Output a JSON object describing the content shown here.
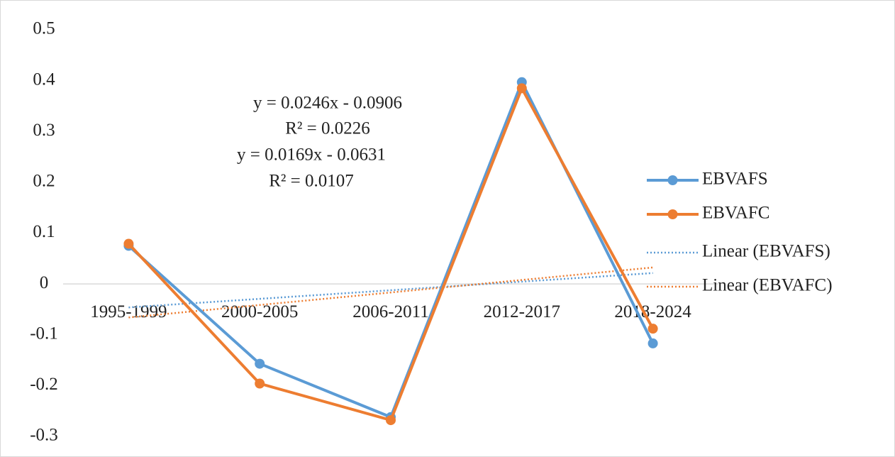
{
  "chart_data": {
    "type": "line",
    "categories": [
      "1995-1999",
      "2000-2005",
      "2006-2011",
      "2012-2017",
      "2018-2024"
    ],
    "series": [
      {
        "name": "EBVAFS",
        "color": "#5b9bd5",
        "values": [
          0.075,
          -0.157,
          -0.262,
          0.397,
          -0.117
        ]
      },
      {
        "name": "EBVAFC",
        "color": "#ed7d31",
        "values": [
          0.079,
          -0.196,
          -0.268,
          0.385,
          -0.088
        ]
      }
    ],
    "trendlines": [
      {
        "name": "Linear (EBVAFS)",
        "color": "#5b9bd5",
        "slope": 0.0169,
        "intercept": -0.0631,
        "equation": "y = 0.0169x - 0.0631",
        "r2": "R² = 0.0107"
      },
      {
        "name": "Linear (EBVAFC)",
        "color": "#ed7d31",
        "slope": 0.0246,
        "intercept": -0.0906,
        "equation": "y = 0.0246x - 0.0906",
        "r2": "R² = 0.0226"
      }
    ],
    "ylim": [
      -0.3,
      0.5
    ],
    "yticks": [
      -0.3,
      -0.2,
      -0.1,
      0,
      0.1,
      0.2,
      0.3,
      0.4,
      0.5
    ],
    "grid": false,
    "legend": "right"
  }
}
